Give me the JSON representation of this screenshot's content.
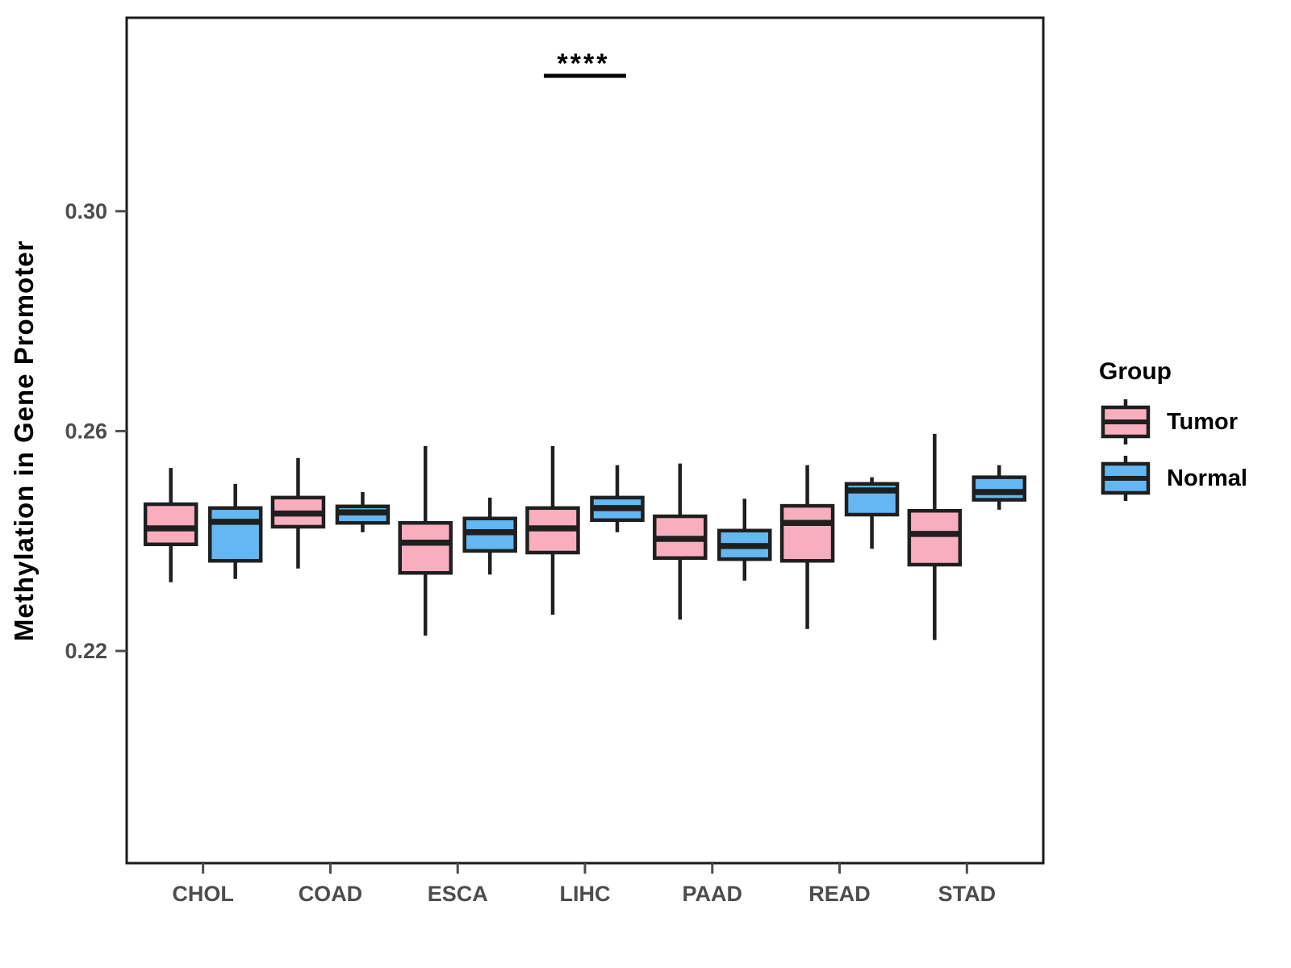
{
  "legend": {
    "title": "Group",
    "items": [
      {
        "label": "Tumor"
      },
      {
        "label": "Normal"
      }
    ]
  },
  "chart_data": {
    "type": "boxplot",
    "title": "",
    "xlabel": "",
    "ylabel": "Methylation in Gene Promoter",
    "categories": [
      "CHOL",
      "COAD",
      "ESCA",
      "LIHC",
      "PAAD",
      "READ",
      "STAD"
    ],
    "yticks": [
      0.22,
      0.26,
      0.3
    ],
    "ylim": [
      0.1814,
      0.3352
    ],
    "grid": false,
    "legend_position": "right",
    "box_border_color": "#1f1f1f",
    "axis_text_color": "#4d4d4d",
    "series": [
      {
        "name": "Tumor",
        "color": "#F9AEBE",
        "boxes": [
          {
            "category": "CHOL",
            "whisker_low": 0.2325,
            "q1": 0.2394,
            "median": 0.2423,
            "q3": 0.2467,
            "whisker_high": 0.2533
          },
          {
            "category": "COAD",
            "whisker_low": 0.235,
            "q1": 0.2426,
            "median": 0.245,
            "q3": 0.2479,
            "whisker_high": 0.2551
          },
          {
            "category": "ESCA",
            "whisker_low": 0.2228,
            "q1": 0.2342,
            "median": 0.2397,
            "q3": 0.2433,
            "whisker_high": 0.2573
          },
          {
            "category": "LIHC",
            "whisker_low": 0.2266,
            "q1": 0.2379,
            "median": 0.2423,
            "q3": 0.246,
            "whisker_high": 0.2573
          },
          {
            "category": "PAAD",
            "whisker_low": 0.2257,
            "q1": 0.2369,
            "median": 0.2404,
            "q3": 0.2445,
            "whisker_high": 0.2541
          },
          {
            "category": "READ",
            "whisker_low": 0.224,
            "q1": 0.2364,
            "median": 0.2433,
            "q3": 0.2464,
            "whisker_high": 0.2538
          },
          {
            "category": "STAD",
            "whisker_low": 0.222,
            "q1": 0.2357,
            "median": 0.2413,
            "q3": 0.2455,
            "whisker_high": 0.2595
          }
        ]
      },
      {
        "name": "Normal",
        "color": "#64B7F1",
        "boxes": [
          {
            "category": "CHOL",
            "whisker_low": 0.2331,
            "q1": 0.2364,
            "median": 0.2435,
            "q3": 0.246,
            "whisker_high": 0.2504
          },
          {
            "category": "COAD",
            "whisker_low": 0.2416,
            "q1": 0.2433,
            "median": 0.2452,
            "q3": 0.2463,
            "whisker_high": 0.2489
          },
          {
            "category": "ESCA",
            "whisker_low": 0.2339,
            "q1": 0.2382,
            "median": 0.2416,
            "q3": 0.2441,
            "whisker_high": 0.2479
          },
          {
            "category": "LIHC",
            "whisker_low": 0.2416,
            "q1": 0.2438,
            "median": 0.246,
            "q3": 0.2479,
            "whisker_high": 0.2538
          },
          {
            "category": "PAAD",
            "whisker_low": 0.2328,
            "q1": 0.2367,
            "median": 0.2391,
            "q3": 0.2419,
            "whisker_high": 0.2477
          },
          {
            "category": "READ",
            "whisker_low": 0.2386,
            "q1": 0.2448,
            "median": 0.2492,
            "q3": 0.2504,
            "whisker_high": 0.2516
          },
          {
            "category": "STAD",
            "whisker_low": 0.2457,
            "q1": 0.2475,
            "median": 0.2489,
            "q3": 0.2516,
            "whisker_high": 0.2538
          }
        ]
      }
    ],
    "annotation": {
      "text": "****",
      "category": "LIHC"
    }
  }
}
